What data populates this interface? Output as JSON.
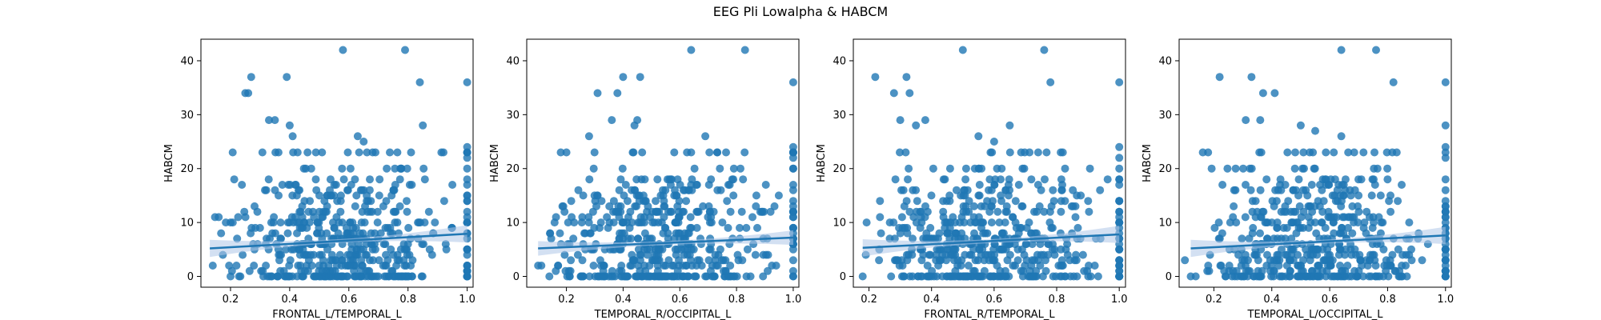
{
  "figure": {
    "title": "EEG Pli Lowalpha & HABCM"
  },
  "colors": {
    "points": "#1f77b4",
    "line": "#1f77b4",
    "band": "#aec7e8"
  },
  "chart_data": [
    {
      "type": "scatter",
      "title": "",
      "xlabel": "FRONTAL_L/TEMPORAL_L",
      "ylabel": "HABCM",
      "xlim": [
        0.1,
        1.02
      ],
      "ylim": [
        -2,
        44
      ],
      "xticks": [
        0.2,
        0.4,
        0.6,
        0.8,
        1.0
      ],
      "xtick_labels": [
        "0.2",
        "0.4",
        "0.6",
        "0.8",
        "1.0"
      ],
      "yticks": [
        0,
        10,
        20,
        30,
        40
      ],
      "ytick_labels": [
        "0",
        "10",
        "20",
        "30",
        "40"
      ],
      "regression": {
        "x": [
          0.13,
          1.0
        ],
        "y": [
          5.2,
          7.9
        ],
        "ci_low_at_end": 6.3,
        "ci_high_at_end": 9.5
      },
      "highlights": [
        [
          0.58,
          42
        ],
        [
          0.79,
          42
        ],
        [
          0.84,
          36
        ],
        [
          1.0,
          36
        ],
        [
          0.27,
          37
        ],
        [
          0.39,
          37
        ],
        [
          0.25,
          34
        ],
        [
          0.26,
          34
        ],
        [
          0.85,
          28
        ],
        [
          0.33,
          29
        ],
        [
          0.35,
          29
        ],
        [
          0.4,
          28
        ],
        [
          0.63,
          26
        ],
        [
          0.65,
          25
        ],
        [
          0.41,
          26
        ],
        [
          0.95,
          17
        ],
        [
          1.0,
          24
        ],
        [
          1.0,
          22
        ],
        [
          1.0,
          20
        ],
        [
          0.14,
          2
        ],
        [
          0.16,
          11
        ],
        [
          0.2,
          10
        ]
      ],
      "scatter_seed": 11
    },
    {
      "type": "scatter",
      "title": "",
      "xlabel": "TEMPORAL_R/OCCIPITAL_L",
      "ylabel": "HABCM",
      "xlim": [
        0.06,
        1.02
      ],
      "ylim": [
        -2,
        44
      ],
      "xticks": [
        0.2,
        0.4,
        0.6,
        0.8,
        1.0
      ],
      "xtick_labels": [
        "0.2",
        "0.4",
        "0.6",
        "0.8",
        "1.0"
      ],
      "yticks": [
        0,
        10,
        20,
        30,
        40
      ],
      "ytick_labels": [
        "0",
        "10",
        "20",
        "30",
        "40"
      ],
      "regression": {
        "x": [
          0.1,
          1.0
        ],
        "y": [
          5.2,
          7.2
        ],
        "ci_low_at_end": 5.9,
        "ci_high_at_end": 8.6
      },
      "highlights": [
        [
          0.64,
          42
        ],
        [
          0.83,
          42
        ],
        [
          1.0,
          36
        ],
        [
          0.4,
          37
        ],
        [
          0.46,
          37
        ],
        [
          0.31,
          34
        ],
        [
          0.38,
          34
        ],
        [
          0.44,
          28
        ],
        [
          0.45,
          29
        ],
        [
          0.28,
          26
        ],
        [
          0.36,
          29
        ],
        [
          0.69,
          26
        ],
        [
          1.0,
          24
        ],
        [
          1.0,
          22
        ],
        [
          1.0,
          20
        ],
        [
          0.1,
          2
        ],
        [
          0.14,
          0
        ],
        [
          0.18,
          23
        ],
        [
          0.2,
          23
        ]
      ],
      "scatter_seed": 23
    },
    {
      "type": "scatter",
      "title": "",
      "xlabel": "FRONTAL_R/TEMPORAL_L",
      "ylabel": "HABCM",
      "xlim": [
        0.15,
        1.02
      ],
      "ylim": [
        -2,
        44
      ],
      "xticks": [
        0.2,
        0.4,
        0.6,
        0.8,
        1.0
      ],
      "xtick_labels": [
        "0.2",
        "0.4",
        "0.6",
        "0.8",
        "1.0"
      ],
      "yticks": [
        0,
        10,
        20,
        30,
        40
      ],
      "ytick_labels": [
        "0",
        "10",
        "20",
        "30",
        "40"
      ],
      "regression": {
        "x": [
          0.18,
          1.0
        ],
        "y": [
          5.3,
          7.8
        ],
        "ci_low_at_end": 6.2,
        "ci_high_at_end": 9.4
      },
      "highlights": [
        [
          0.5,
          42
        ],
        [
          0.76,
          42
        ],
        [
          0.78,
          36
        ],
        [
          1.0,
          36
        ],
        [
          0.22,
          37
        ],
        [
          0.32,
          37
        ],
        [
          0.28,
          34
        ],
        [
          0.33,
          34
        ],
        [
          0.35,
          28
        ],
        [
          0.38,
          29
        ],
        [
          0.3,
          29
        ],
        [
          0.55,
          26
        ],
        [
          0.6,
          25
        ],
        [
          0.65,
          28
        ],
        [
          1.0,
          24
        ],
        [
          1.0,
          22
        ],
        [
          1.0,
          20
        ],
        [
          0.18,
          0
        ],
        [
          0.19,
          4
        ]
      ],
      "scatter_seed": 37
    },
    {
      "type": "scatter",
      "title": "",
      "xlabel": "TEMPORAL_L/OCCIPITAL_L",
      "ylabel": "HABCM",
      "xlim": [
        0.08,
        1.02
      ],
      "ylim": [
        -2,
        44
      ],
      "xticks": [
        0.2,
        0.4,
        0.6,
        0.8,
        1.0
      ],
      "xtick_labels": [
        "0.2",
        "0.4",
        "0.6",
        "0.8",
        "1.0"
      ],
      "yticks": [
        0,
        10,
        20,
        30,
        40
      ],
      "ytick_labels": [
        "0",
        "10",
        "20",
        "30",
        "40"
      ],
      "regression": {
        "x": [
          0.12,
          1.0
        ],
        "y": [
          5.2,
          7.6
        ],
        "ci_low_at_end": 6.0,
        "ci_high_at_end": 9.2
      },
      "highlights": [
        [
          0.64,
          42
        ],
        [
          0.76,
          42
        ],
        [
          0.82,
          36
        ],
        [
          1.0,
          36
        ],
        [
          0.22,
          37
        ],
        [
          0.33,
          37
        ],
        [
          0.37,
          34
        ],
        [
          0.41,
          34
        ],
        [
          0.31,
          29
        ],
        [
          0.36,
          29
        ],
        [
          0.5,
          28
        ],
        [
          0.55,
          27
        ],
        [
          0.64,
          26
        ],
        [
          1.0,
          28
        ],
        [
          1.0,
          24
        ],
        [
          1.0,
          22
        ],
        [
          0.1,
          3
        ],
        [
          0.12,
          0
        ],
        [
          0.18,
          23
        ]
      ],
      "scatter_seed": 53
    }
  ]
}
